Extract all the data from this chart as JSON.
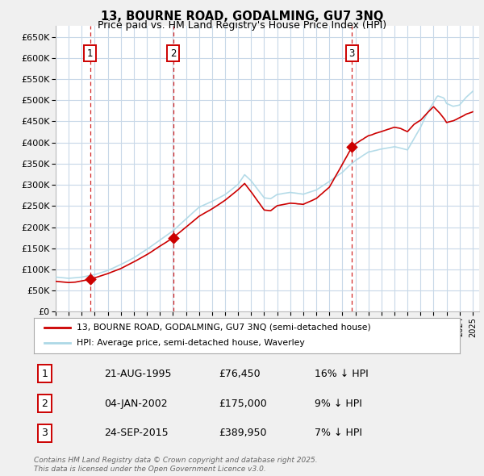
{
  "title": "13, BOURNE ROAD, GODALMING, GU7 3NQ",
  "subtitle": "Price paid vs. HM Land Registry's House Price Index (HPI)",
  "ylim": [
    0,
    675000
  ],
  "yticks": [
    0,
    50000,
    100000,
    150000,
    200000,
    250000,
    300000,
    350000,
    400000,
    450000,
    500000,
    550000,
    600000,
    650000
  ],
  "sale_year_floats": [
    1995.64,
    2002.01,
    2015.73
  ],
  "sale_prices": [
    76450,
    175000,
    389950
  ],
  "sale_labels": [
    "1",
    "2",
    "3"
  ],
  "hpi_color": "#add8e6",
  "sale_line_color": "#cc0000",
  "sale_marker_color": "#cc0000",
  "vline_color": "#cc0000",
  "legend_label_sale": "13, BOURNE ROAD, GODALMING, GU7 3NQ (semi-detached house)",
  "legend_label_hpi": "HPI: Average price, semi-detached house, Waverley",
  "table_rows": [
    [
      "1",
      "21-AUG-1995",
      "£76,450",
      "16% ↓ HPI"
    ],
    [
      "2",
      "04-JAN-2002",
      "£175,000",
      "9% ↓ HPI"
    ],
    [
      "3",
      "24-SEP-2015",
      "£389,950",
      "7% ↓ HPI"
    ]
  ],
  "footer": "Contains HM Land Registry data © Crown copyright and database right 2025.\nThis data is licensed under the Open Government Licence v3.0.",
  "bg_color": "#f0f0f0",
  "plot_bg_color": "#ffffff",
  "grid_color": "#c8d8e8",
  "label_box_color": "#cc0000",
  "xlim": [
    1993,
    2025.5
  ]
}
